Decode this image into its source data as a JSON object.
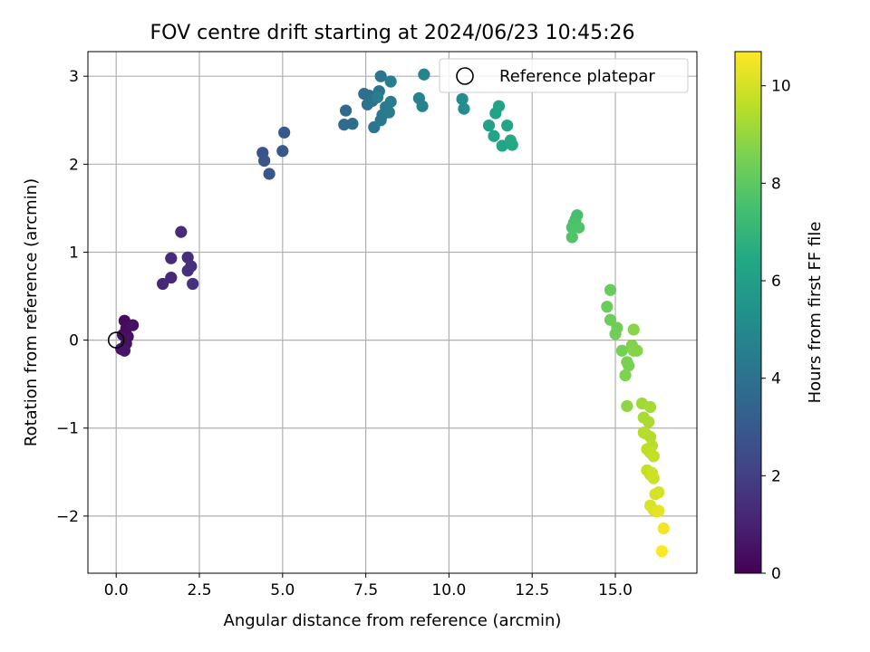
{
  "chart_data": {
    "type": "scatter",
    "title": "FOV centre drift starting at 2024/06/23 10:45:26",
    "xlabel": "Angular distance from reference (arcmin)",
    "ylabel": "Rotation from reference (arcmin)",
    "xlim": [
      -0.85,
      17.45
    ],
    "ylim": [
      -2.65,
      3.28
    ],
    "xticks": [
      0.0,
      2.5,
      5.0,
      7.5,
      10.0,
      12.5,
      15.0
    ],
    "xtick_labels": [
      "0.0",
      "2.5",
      "5.0",
      "7.5",
      "10.0",
      "12.5",
      "15.0"
    ],
    "yticks": [
      -2,
      -1,
      0,
      1,
      2,
      3
    ],
    "ytick_labels": [
      "−2",
      "−1",
      "0",
      "1",
      "2",
      "3"
    ],
    "grid": true,
    "legend": {
      "position": "top-right",
      "entries": [
        {
          "label": "Reference platepar",
          "marker": "hollow-circle"
        }
      ]
    },
    "reference_point": {
      "x": 0,
      "y": 0
    },
    "colorbar": {
      "label": "Hours from first FF file",
      "colormap": "viridis",
      "range": [
        0,
        10.7
      ],
      "ticks": [
        0,
        2,
        4,
        6,
        8,
        10
      ],
      "tick_labels": [
        "0",
        "2",
        "4",
        "6",
        "8",
        "10"
      ]
    },
    "points": [
      {
        "x": 0.25,
        "y": 0.22,
        "h": 0.3
      },
      {
        "x": 0.3,
        "y": 0.13,
        "h": 0.35
      },
      {
        "x": 0.5,
        "y": 0.17,
        "h": 0.5
      },
      {
        "x": 0.2,
        "y": 0.06,
        "h": 0.4
      },
      {
        "x": 0.35,
        "y": 0.04,
        "h": 0.45
      },
      {
        "x": 0.3,
        "y": -0.04,
        "h": 0.5
      },
      {
        "x": 0.15,
        "y": -0.1,
        "h": 0.55
      },
      {
        "x": 0.25,
        "y": -0.12,
        "h": 0.6
      },
      {
        "x": 1.4,
        "y": 0.64,
        "h": 1.2
      },
      {
        "x": 1.65,
        "y": 0.71,
        "h": 1.25
      },
      {
        "x": 1.65,
        "y": 0.93,
        "h": 1.3
      },
      {
        "x": 1.95,
        "y": 1.23,
        "h": 1.35
      },
      {
        "x": 2.15,
        "y": 0.94,
        "h": 1.4
      },
      {
        "x": 2.25,
        "y": 0.84,
        "h": 1.45
      },
      {
        "x": 2.15,
        "y": 0.79,
        "h": 1.5
      },
      {
        "x": 2.3,
        "y": 0.64,
        "h": 1.55
      },
      {
        "x": 4.4,
        "y": 2.13,
        "h": 2.75
      },
      {
        "x": 4.45,
        "y": 2.04,
        "h": 2.8
      },
      {
        "x": 4.6,
        "y": 1.89,
        "h": 2.85
      },
      {
        "x": 5.05,
        "y": 2.36,
        "h": 2.9
      },
      {
        "x": 5.0,
        "y": 2.15,
        "h": 2.95
      },
      {
        "x": 6.9,
        "y": 2.61,
        "h": 3.7
      },
      {
        "x": 6.85,
        "y": 2.45,
        "h": 3.75
      },
      {
        "x": 7.1,
        "y": 2.46,
        "h": 3.8
      },
      {
        "x": 7.45,
        "y": 2.8,
        "h": 3.9
      },
      {
        "x": 7.6,
        "y": 2.78,
        "h": 3.95
      },
      {
        "x": 7.7,
        "y": 2.72,
        "h": 4.0
      },
      {
        "x": 7.55,
        "y": 2.68,
        "h": 4.05
      },
      {
        "x": 7.9,
        "y": 2.83,
        "h": 4.1
      },
      {
        "x": 7.95,
        "y": 3.0,
        "h": 4.15
      },
      {
        "x": 7.75,
        "y": 2.42,
        "h": 4.2
      },
      {
        "x": 7.95,
        "y": 2.5,
        "h": 4.25
      },
      {
        "x": 8.0,
        "y": 2.56,
        "h": 4.3
      },
      {
        "x": 8.1,
        "y": 2.65,
        "h": 4.35
      },
      {
        "x": 8.2,
        "y": 2.59,
        "h": 4.4
      },
      {
        "x": 8.25,
        "y": 2.71,
        "h": 4.45
      },
      {
        "x": 8.25,
        "y": 2.94,
        "h": 4.5
      },
      {
        "x": 7.85,
        "y": 2.76,
        "h": 4.55
      },
      {
        "x": 9.1,
        "y": 2.75,
        "h": 4.7
      },
      {
        "x": 9.2,
        "y": 2.66,
        "h": 4.75
      },
      {
        "x": 9.25,
        "y": 3.02,
        "h": 4.8
      },
      {
        "x": 10.4,
        "y": 2.74,
        "h": 5.2
      },
      {
        "x": 10.45,
        "y": 2.63,
        "h": 5.25
      },
      {
        "x": 11.2,
        "y": 2.44,
        "h": 6.1
      },
      {
        "x": 11.4,
        "y": 2.58,
        "h": 6.15
      },
      {
        "x": 11.5,
        "y": 2.66,
        "h": 6.2
      },
      {
        "x": 11.35,
        "y": 2.32,
        "h": 6.25
      },
      {
        "x": 11.6,
        "y": 2.21,
        "h": 6.3
      },
      {
        "x": 11.75,
        "y": 2.44,
        "h": 6.35
      },
      {
        "x": 11.85,
        "y": 2.27,
        "h": 6.4
      },
      {
        "x": 11.9,
        "y": 2.22,
        "h": 6.45
      },
      {
        "x": 13.85,
        "y": 1.42,
        "h": 7.5
      },
      {
        "x": 13.8,
        "y": 1.37,
        "h": 7.55
      },
      {
        "x": 13.75,
        "y": 1.33,
        "h": 7.6
      },
      {
        "x": 13.7,
        "y": 1.28,
        "h": 7.65
      },
      {
        "x": 13.9,
        "y": 1.28,
        "h": 7.7
      },
      {
        "x": 13.7,
        "y": 1.17,
        "h": 7.75
      },
      {
        "x": 14.85,
        "y": 0.57,
        "h": 8.2
      },
      {
        "x": 14.75,
        "y": 0.38,
        "h": 8.25
      },
      {
        "x": 14.85,
        "y": 0.23,
        "h": 8.3
      },
      {
        "x": 15.05,
        "y": 0.14,
        "h": 8.35
      },
      {
        "x": 15.0,
        "y": 0.07,
        "h": 8.4
      },
      {
        "x": 15.2,
        "y": -0.12,
        "h": 8.45
      },
      {
        "x": 15.35,
        "y": -0.25,
        "h": 8.5
      },
      {
        "x": 15.4,
        "y": -0.29,
        "h": 8.55
      },
      {
        "x": 15.3,
        "y": -0.4,
        "h": 8.6
      },
      {
        "x": 15.5,
        "y": -0.06,
        "h": 8.65
      },
      {
        "x": 15.55,
        "y": -0.12,
        "h": 8.7
      },
      {
        "x": 15.65,
        "y": -0.12,
        "h": 8.75
      },
      {
        "x": 15.55,
        "y": 0.12,
        "h": 8.8
      },
      {
        "x": 15.35,
        "y": -0.75,
        "h": 8.85
      },
      {
        "x": 15.8,
        "y": -0.72,
        "h": 9.2
      },
      {
        "x": 16.05,
        "y": -0.76,
        "h": 9.25
      },
      {
        "x": 15.85,
        "y": -0.88,
        "h": 9.3
      },
      {
        "x": 16.0,
        "y": -0.93,
        "h": 9.35
      },
      {
        "x": 15.9,
        "y": -1.06,
        "h": 9.4
      },
      {
        "x": 16.05,
        "y": -1.1,
        "h": 9.45
      },
      {
        "x": 15.85,
        "y": -1.05,
        "h": 9.5
      },
      {
        "x": 16.1,
        "y": -1.2,
        "h": 9.55
      },
      {
        "x": 15.95,
        "y": -1.24,
        "h": 9.6
      },
      {
        "x": 16.05,
        "y": -1.28,
        "h": 9.65
      },
      {
        "x": 16.15,
        "y": -1.32,
        "h": 9.7
      },
      {
        "x": 15.95,
        "y": -1.48,
        "h": 9.75
      },
      {
        "x": 16.05,
        "y": -1.53,
        "h": 9.8
      },
      {
        "x": 16.15,
        "y": -1.57,
        "h": 9.85
      },
      {
        "x": 16.1,
        "y": -1.51,
        "h": 9.9
      },
      {
        "x": 16.3,
        "y": -1.73,
        "h": 10.0
      },
      {
        "x": 16.2,
        "y": -1.75,
        "h": 10.05
      },
      {
        "x": 16.05,
        "y": -1.88,
        "h": 10.1
      },
      {
        "x": 16.15,
        "y": -1.93,
        "h": 10.15
      },
      {
        "x": 16.25,
        "y": -1.95,
        "h": 10.2
      },
      {
        "x": 16.3,
        "y": -1.94,
        "h": 10.25
      },
      {
        "x": 16.45,
        "y": -2.14,
        "h": 10.5
      },
      {
        "x": 16.4,
        "y": -2.4,
        "h": 10.7
      }
    ]
  }
}
